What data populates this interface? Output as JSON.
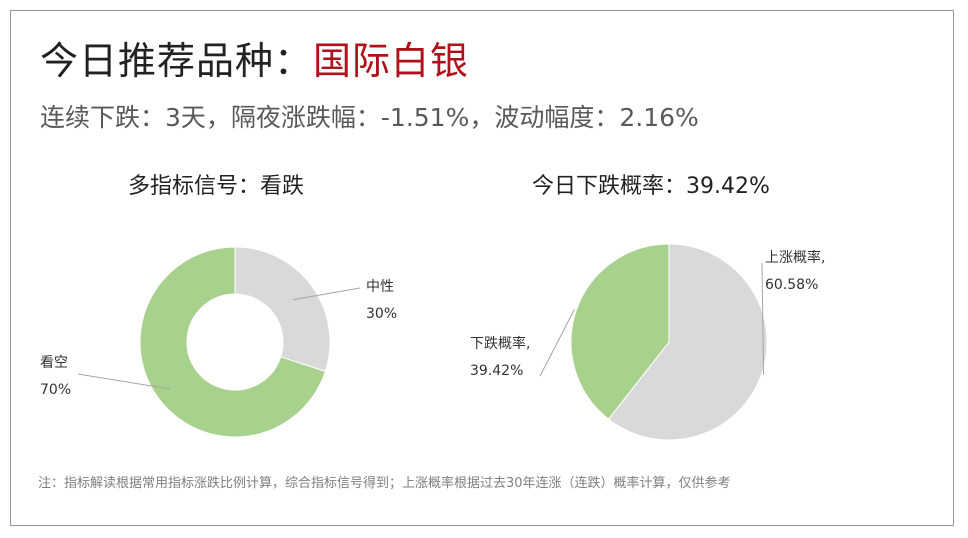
{
  "title": {
    "prefix": "今日推荐品种：",
    "highlight": "国际白银"
  },
  "subtitle": "连续下跌：3天，隔夜涨跌幅：-1.51%，波动幅度：2.16%",
  "colors": {
    "green": "#a9d18e",
    "gray": "#d9d9d9",
    "highlight": "#b0121b"
  },
  "footnote": "注：指标解读根据常用指标涨跌比例计算，综合指标信号得到；上涨概率根据过去30年连涨（连跌）概率计算，仅供参考",
  "chart_data": [
    {
      "type": "pie",
      "variant": "doughnut",
      "title": "多指标信号：看跌",
      "slices": [
        {
          "label": "中性",
          "value": 30,
          "value_label": "30%",
          "color": "#d9d9d9"
        },
        {
          "label": "看空",
          "value": 70,
          "value_label": "70%",
          "color": "#a9d18e"
        }
      ]
    },
    {
      "type": "pie",
      "title": "今日下跌概率：39.42%",
      "slices": [
        {
          "label": "上涨概率,",
          "value": 60.58,
          "value_label": "60.58%",
          "color": "#d9d9d9"
        },
        {
          "label": "下跌概率,",
          "value": 39.42,
          "value_label": "39.42%",
          "color": "#a9d18e"
        }
      ]
    }
  ]
}
